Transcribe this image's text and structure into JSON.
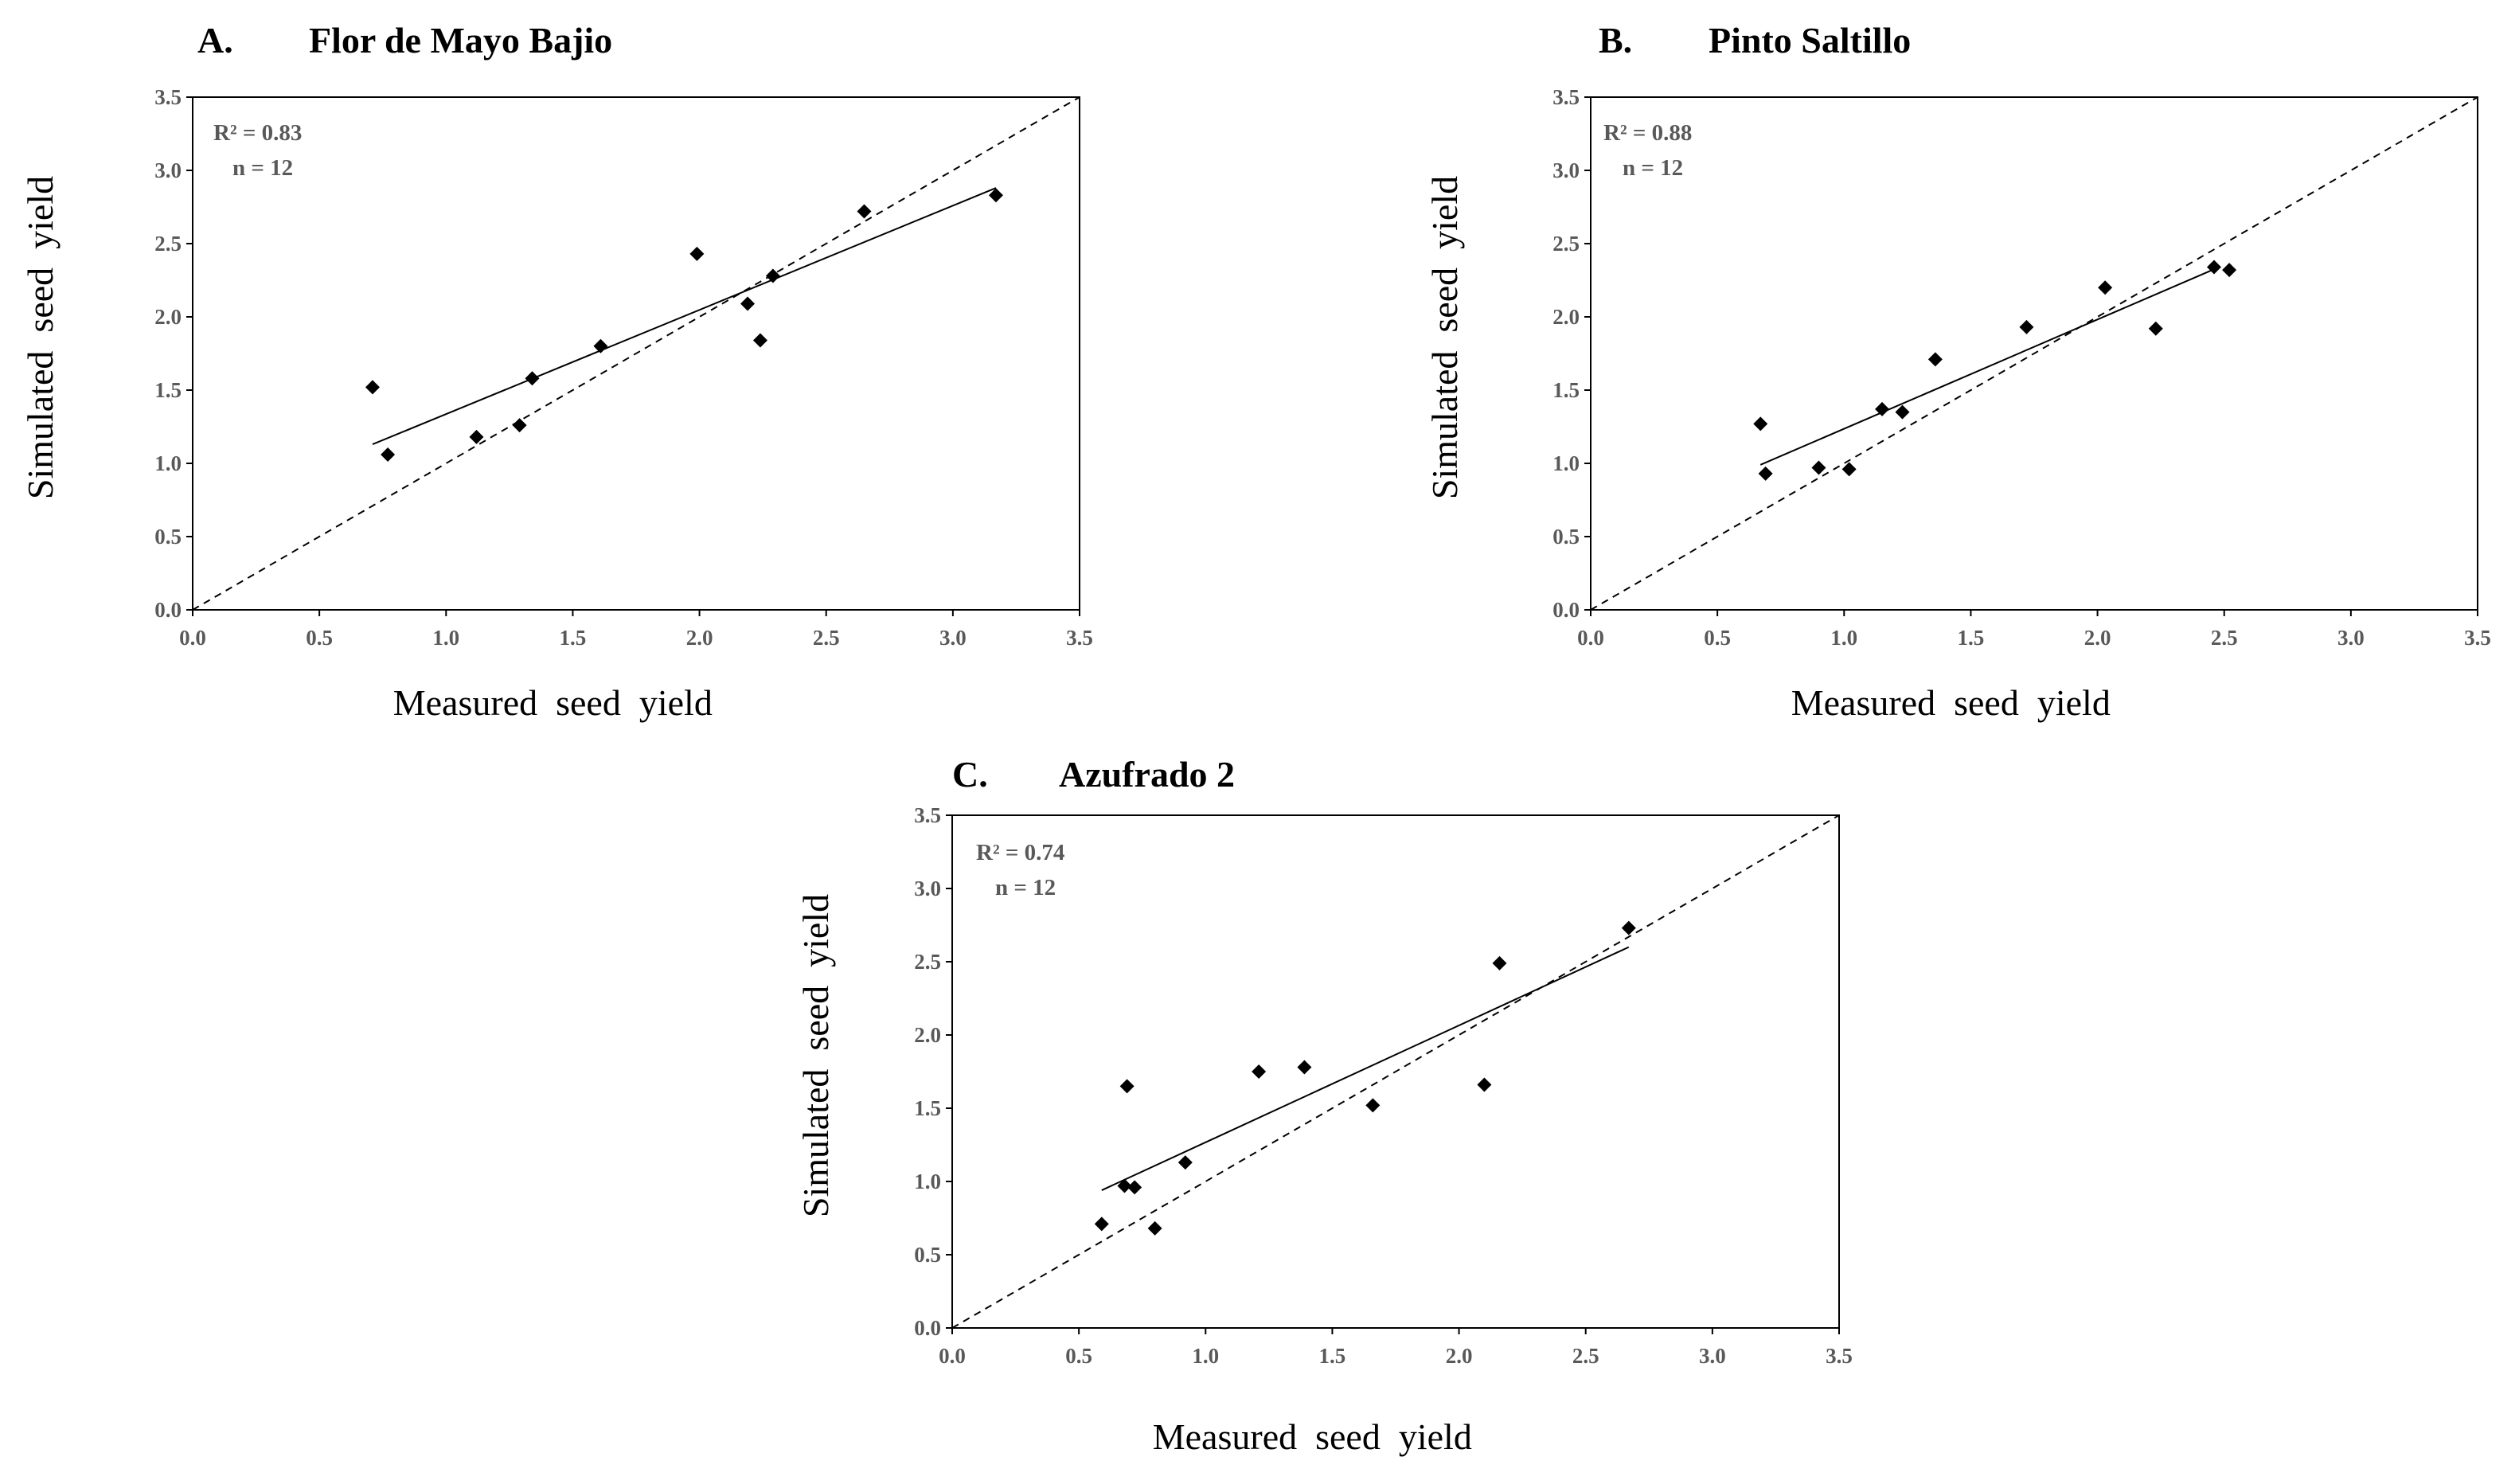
{
  "chart_data": [
    {
      "type": "scatter",
      "panel": "A.",
      "title": "Flor de Mayo Bajio",
      "xlabel": "Measured  seed  yield",
      "ylabel": "Simulated  seed  yield",
      "xlim": [
        0,
        3.5
      ],
      "ylim": [
        0,
        3.5
      ],
      "xticks": [
        "0.0",
        "0.5",
        "1.0",
        "1.5",
        "2.0",
        "2.5",
        "3.0",
        "3.5"
      ],
      "yticks": [
        "0.0",
        "0.5",
        "1.0",
        "1.5",
        "2.0",
        "2.5",
        "3.0",
        "3.5"
      ],
      "r2_label": "R² = 0.83",
      "n_label": "n = 12",
      "points": [
        [
          0.71,
          1.52
        ],
        [
          0.77,
          1.06
        ],
        [
          1.12,
          1.18
        ],
        [
          1.29,
          1.26
        ],
        [
          1.34,
          1.58
        ],
        [
          1.61,
          1.8
        ],
        [
          1.99,
          2.43
        ],
        [
          2.19,
          2.09
        ],
        [
          2.24,
          1.84
        ],
        [
          2.29,
          2.28
        ],
        [
          2.65,
          2.72
        ],
        [
          3.17,
          2.83
        ]
      ],
      "trendline": [
        [
          0.71,
          1.13
        ],
        [
          3.17,
          2.88
        ]
      ],
      "identity_line": [
        [
          0,
          0
        ],
        [
          3.5,
          3.5
        ]
      ]
    },
    {
      "type": "scatter",
      "panel": "B.",
      "title": "Pinto Saltillo",
      "xlabel": "Measured  seed  yield",
      "ylabel": "Simulated  seed  yield",
      "xlim": [
        0,
        3.5
      ],
      "ylim": [
        0,
        3.5
      ],
      "xticks": [
        "0.0",
        "0.5",
        "1.0",
        "1.5",
        "2.0",
        "2.5",
        "3.0",
        "3.5"
      ],
      "yticks": [
        "0.0",
        "0.5",
        "1.0",
        "1.5",
        "2.0",
        "2.5",
        "3.0",
        "3.5"
      ],
      "r2_label": "R² = 0.88",
      "n_label": "n = 12",
      "points": [
        [
          0.67,
          1.27
        ],
        [
          0.69,
          0.93
        ],
        [
          0.9,
          0.97
        ],
        [
          1.02,
          0.96
        ],
        [
          1.15,
          1.37
        ],
        [
          1.23,
          1.35
        ],
        [
          1.36,
          1.71
        ],
        [
          1.72,
          1.93
        ],
        [
          2.03,
          2.2
        ],
        [
          2.23,
          1.92
        ],
        [
          2.46,
          2.34
        ],
        [
          2.52,
          2.32
        ]
      ],
      "trendline": [
        [
          0.67,
          0.99
        ],
        [
          2.48,
          2.34
        ]
      ],
      "identity_line": [
        [
          0,
          0
        ],
        [
          3.5,
          3.5
        ]
      ]
    },
    {
      "type": "scatter",
      "panel": "C.",
      "title": "Azufrado  2",
      "xlabel": "Measured  seed  yield",
      "ylabel": "Simulated  seed  yield",
      "xlim": [
        0,
        3.5
      ],
      "ylim": [
        0,
        3.5
      ],
      "xticks": [
        "0.0",
        "0.5",
        "1.0",
        "1.5",
        "2.0",
        "2.5",
        "3.0",
        "3.5"
      ],
      "yticks": [
        "0.0",
        "0.5",
        "1.0",
        "1.5",
        "2.0",
        "2.5",
        "3.0",
        "3.5"
      ],
      "r2_label": "R² = 0.74",
      "n_label": "n = 12",
      "points": [
        [
          0.59,
          0.71
        ],
        [
          0.68,
          0.97
        ],
        [
          0.69,
          1.65
        ],
        [
          0.72,
          0.96
        ],
        [
          0.8,
          0.68
        ],
        [
          0.92,
          1.13
        ],
        [
          1.21,
          1.75
        ],
        [
          1.39,
          1.78
        ],
        [
          1.66,
          1.52
        ],
        [
          2.1,
          1.66
        ],
        [
          2.16,
          2.49
        ],
        [
          2.67,
          2.73
        ]
      ],
      "trendline": [
        [
          0.59,
          0.94
        ],
        [
          2.67,
          2.6
        ]
      ],
      "identity_line": [
        [
          0,
          0
        ],
        [
          3.5,
          3.5
        ]
      ]
    }
  ]
}
